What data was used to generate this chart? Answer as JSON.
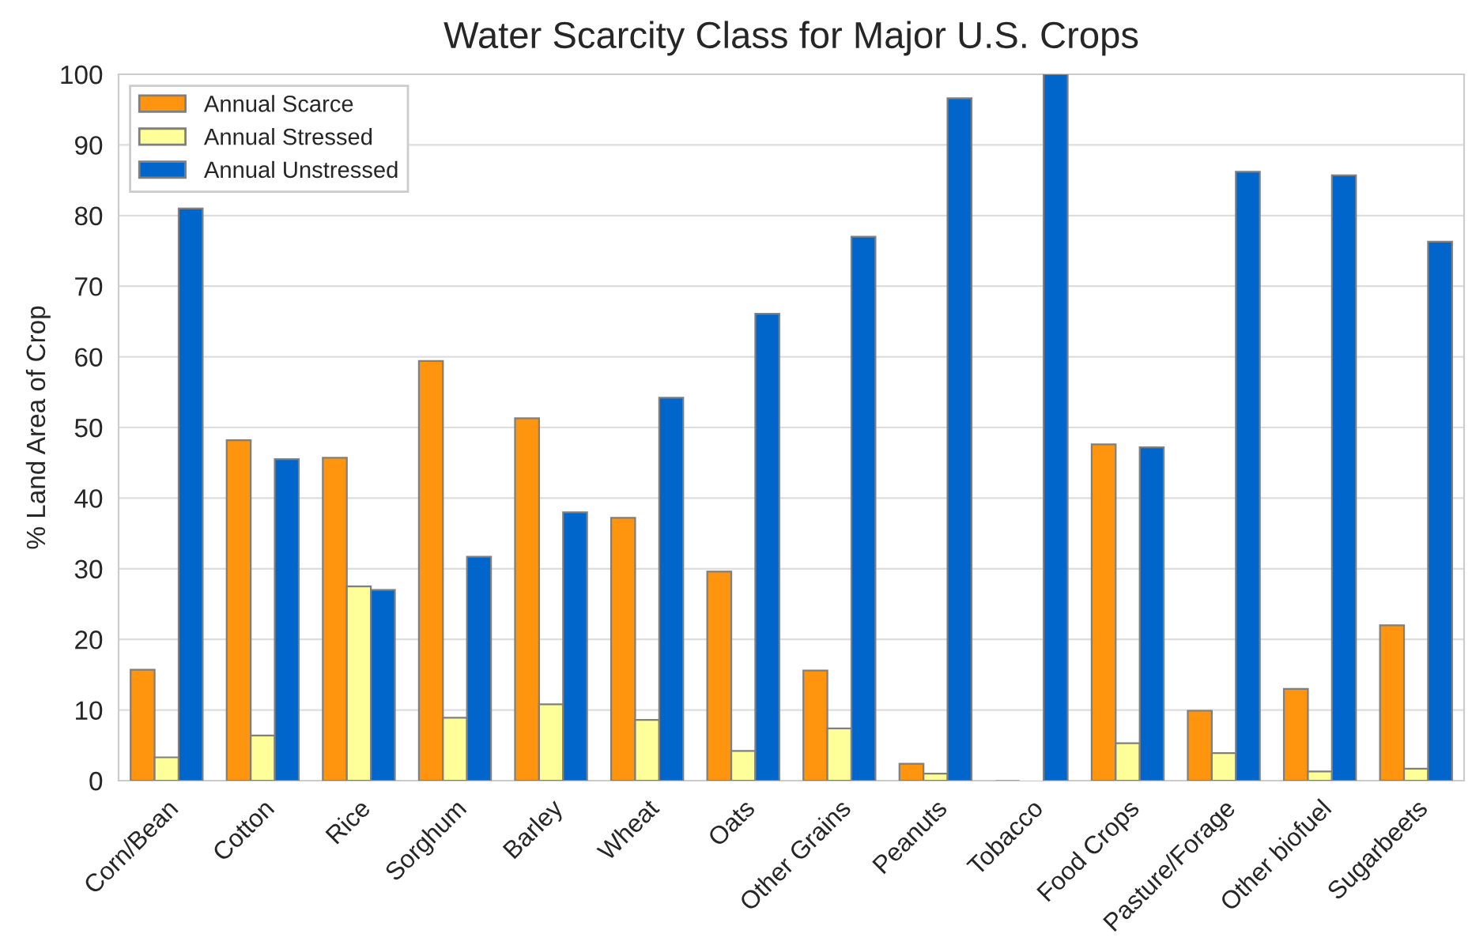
{
  "chart_data": {
    "type": "bar",
    "title": "Water Scarcity Class for Major U.S. Crops",
    "ylabel": "% Land Area of Crop",
    "categories": [
      "Corn/Bean",
      "Cotton",
      "Rice",
      "Sorghum",
      "Barley",
      "Wheat",
      "Oats",
      "Other Grains",
      "Peanuts",
      "Tobacco",
      "Food Crops",
      "Pasture/Forage",
      "Other biofuel",
      "Sugarbeets"
    ],
    "series": [
      {
        "name": "Annual Scarce",
        "color": "#ff950e",
        "values": [
          15.7,
          48.2,
          45.7,
          59.4,
          51.3,
          37.2,
          29.6,
          15.6,
          2.4,
          0,
          47.6,
          9.9,
          13.0,
          22.0
        ]
      },
      {
        "name": "Annual Stressed",
        "color": "#ffff99",
        "values": [
          3.3,
          6.4,
          27.5,
          8.9,
          10.8,
          8.6,
          4.2,
          7.4,
          1.0,
          0,
          5.3,
          3.9,
          1.3,
          1.7
        ]
      },
      {
        "name": "Annual Unstressed",
        "color": "#0066cc",
        "values": [
          81.0,
          45.5,
          27.0,
          31.7,
          38.0,
          54.2,
          66.1,
          77.0,
          96.6,
          100,
          47.2,
          86.2,
          85.7,
          76.3
        ]
      }
    ],
    "ylim": [
      0,
      100
    ],
    "yticks": [
      0,
      10,
      20,
      30,
      40,
      50,
      60,
      70,
      80,
      90,
      100
    ],
    "grid": "y",
    "legend": "top left"
  }
}
